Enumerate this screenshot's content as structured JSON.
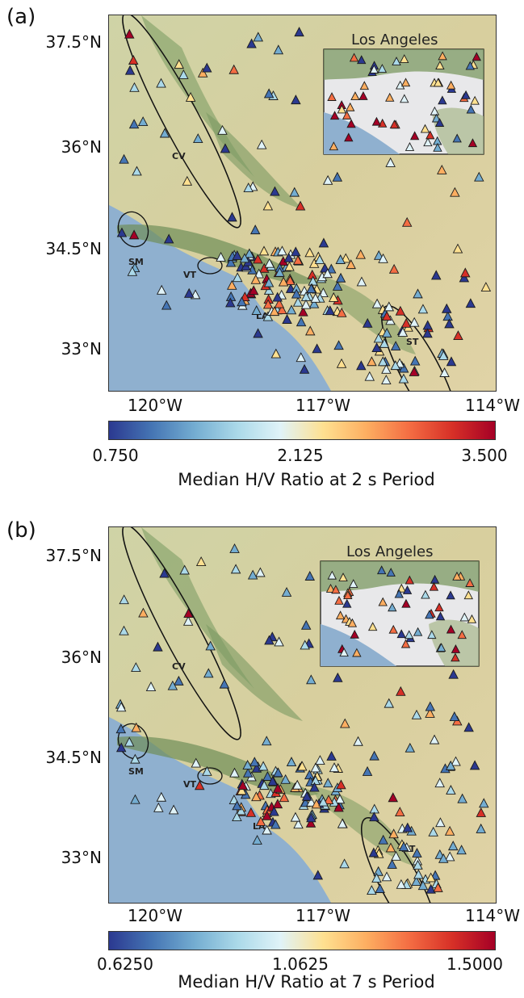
{
  "panels": [
    {
      "label": "(a)",
      "lat_labels": [
        "37.5°N",
        "36°N",
        "34.5°N",
        "33°N"
      ],
      "lon_labels": [
        "120°W",
        "117°W",
        "114°W"
      ],
      "inset_title": "Los Angeles",
      "regions": [
        "CV",
        "SM",
        "VT",
        "LA",
        "ST"
      ],
      "colorbar": {
        "min_label": "0.750",
        "mid_label": "2.125",
        "max_label": "3.500",
        "min": 0.75,
        "max": 3.5,
        "title": "Median H/V Ratio at 2 s Period"
      }
    },
    {
      "label": "(b)",
      "lat_labels": [
        "37.5°N",
        "36°N",
        "34.5°N",
        "33°N"
      ],
      "lon_labels": [
        "120°W",
        "117°W",
        "114°W"
      ],
      "inset_title": "Los Angeles",
      "regions": [
        "CV",
        "SM",
        "VT",
        "LA",
        "ST"
      ],
      "colorbar": {
        "min_label": "0.6250",
        "mid_label": "1.0625",
        "max_label": "1.5000",
        "min": 0.625,
        "max": 1.5,
        "title": "Median H/V Ratio at 7 s Period"
      }
    }
  ],
  "colors": {
    "ocean": "#8fb0cf",
    "land": "#d9d2ad",
    "mountain": "#8aa56e",
    "cmap": [
      "#2b3990",
      "#4575b4",
      "#74add1",
      "#abd9e9",
      "#e0f3f8",
      "#fee090",
      "#fdae61",
      "#f46d43",
      "#d73027",
      "#a50026"
    ]
  }
}
